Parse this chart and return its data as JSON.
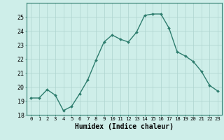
{
  "xlabel": "Humidex (Indice chaleur)",
  "x": [
    0,
    1,
    2,
    3,
    4,
    5,
    6,
    7,
    8,
    9,
    10,
    11,
    12,
    13,
    14,
    15,
    16,
    17,
    18,
    19,
    20,
    21,
    22,
    23
  ],
  "y": [
    19.2,
    19.2,
    19.8,
    19.4,
    18.3,
    18.6,
    19.5,
    20.5,
    21.9,
    23.2,
    23.7,
    23.4,
    23.2,
    23.9,
    25.1,
    25.2,
    25.2,
    24.2,
    22.5,
    22.2,
    21.8,
    21.1,
    20.1,
    19.7
  ],
  "line_color": "#2e7d6e",
  "marker": "D",
  "marker_size": 2.0,
  "bg_color": "#ceeee9",
  "grid_color": "#aed4ce",
  "ylim": [
    18,
    26
  ],
  "yticks": [
    18,
    19,
    20,
    21,
    22,
    23,
    24,
    25
  ],
  "xticks": [
    0,
    1,
    2,
    3,
    4,
    5,
    6,
    7,
    8,
    9,
    10,
    11,
    12,
    13,
    14,
    15,
    16,
    17,
    18,
    19,
    20,
    21,
    22,
    23
  ],
  "ytick_fontsize": 6.0,
  "xtick_fontsize": 5.2,
  "xlabel_fontsize": 7.0,
  "line_width": 1.0,
  "spine_color": "#2e7d6e"
}
